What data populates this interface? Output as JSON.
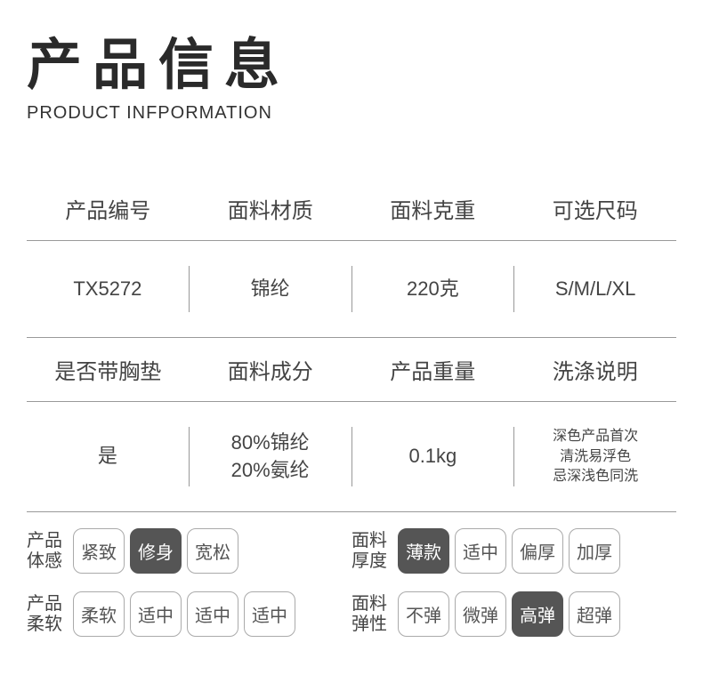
{
  "header": {
    "title_cn": "产品信息",
    "title_en": "PRODUCT INFPORMATION"
  },
  "spec_rows": [
    {
      "headers": [
        "产品编号",
        "面料材质",
        "面料克重",
        "可选尺码"
      ],
      "values": [
        {
          "lines": [
            "TX5272"
          ]
        },
        {
          "lines": [
            "锦纶"
          ]
        },
        {
          "lines": [
            "220克"
          ]
        },
        {
          "lines": [
            "S/M/L/XL"
          ]
        }
      ]
    },
    {
      "headers": [
        "是否带胸垫",
        "面料成分",
        "产品重量",
        "洗涤说明"
      ],
      "values": [
        {
          "lines": [
            "是"
          ]
        },
        {
          "lines": [
            "80%锦纶",
            "20%氨纶"
          ]
        },
        {
          "lines": [
            "0.1kg"
          ]
        },
        {
          "lines": [
            "深色产品首次",
            "清洗易浮色",
            "忌深浅色同洗"
          ],
          "small": true
        }
      ]
    }
  ],
  "tag_rows": [
    {
      "left": {
        "label": "产品\n体感",
        "tags": [
          {
            "text": "紧致",
            "selected": false
          },
          {
            "text": "修身",
            "selected": true
          },
          {
            "text": "宽松",
            "selected": false
          }
        ]
      },
      "right": {
        "label": "面料\n厚度",
        "tags": [
          {
            "text": "薄款",
            "selected": true
          },
          {
            "text": "适中",
            "selected": false
          },
          {
            "text": "偏厚",
            "selected": false
          },
          {
            "text": "加厚",
            "selected": false
          }
        ]
      }
    },
    {
      "left": {
        "label": "产品\n柔软",
        "tags": [
          {
            "text": "柔软",
            "selected": false
          },
          {
            "text": "适中",
            "selected": false
          },
          {
            "text": "适中",
            "selected": false
          },
          {
            "text": "适中",
            "selected": false
          }
        ]
      },
      "right": {
        "label": "面料\n弹性",
        "tags": [
          {
            "text": "不弹",
            "selected": false
          },
          {
            "text": "微弹",
            "selected": false
          },
          {
            "text": "高弹",
            "selected": true
          },
          {
            "text": "超弹",
            "selected": false
          }
        ]
      }
    }
  ],
  "colors": {
    "background": "#ffffff",
    "text_primary": "#2a2a2a",
    "text_body": "#444444",
    "border": "#999999",
    "tag_border": "#aaaaaa",
    "tag_selected_bg": "#555555",
    "tag_selected_text": "#ffffff"
  }
}
